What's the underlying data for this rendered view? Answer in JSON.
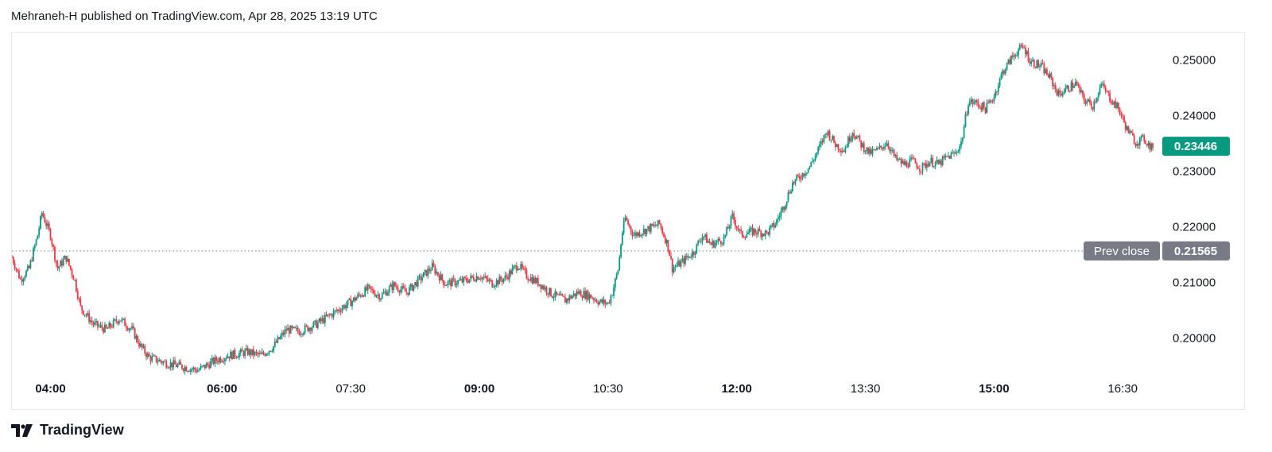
{
  "header": {
    "text": "Mehraneh-H published on TradingView.com, Apr 28, 2025 13:19 UTC"
  },
  "footer": {
    "brand": "TradingView",
    "logo_icon": "tradingview-logo-icon"
  },
  "colors": {
    "up": "#089981",
    "down": "#f23645",
    "prev_close": "#787b86",
    "axis_text": "#131722"
  },
  "chart_data": {
    "type": "candlestick",
    "title": "",
    "xlabel": "",
    "ylabel": "",
    "ylim": [
      0.1935,
      0.2549
    ],
    "grid": false,
    "x_tick_labels": [
      "04:00",
      "06:00",
      "07:30",
      "09:00",
      "10:30",
      "12:00",
      "13:30",
      "15:00",
      "16:30"
    ],
    "x_tick_bold": [
      true,
      true,
      false,
      true,
      false,
      true,
      false,
      true,
      false
    ],
    "x_tick_hours": [
      4.0,
      6.0,
      7.5,
      9.0,
      10.5,
      12.0,
      13.5,
      15.0,
      16.5
    ],
    "time_range_hours": [
      3.55,
      16.85
    ],
    "y_tick_labels": [
      "0.25000",
      "0.24000",
      "0.23000",
      "0.22000",
      "0.21000",
      "0.20000"
    ],
    "y_tick_values": [
      0.25,
      0.24,
      0.23,
      0.22,
      0.21,
      0.2
    ],
    "last_price": {
      "value": 0.23446,
      "label": "0.23446"
    },
    "prev_close": {
      "value": 0.21565,
      "label": "0.21565",
      "tag": "Prev close"
    },
    "price_path": [
      [
        3.55,
        0.2145
      ],
      [
        3.65,
        0.2105
      ],
      [
        3.75,
        0.2125
      ],
      [
        3.85,
        0.2185
      ],
      [
        3.9,
        0.2225
      ],
      [
        4.0,
        0.2185
      ],
      [
        4.08,
        0.2125
      ],
      [
        4.18,
        0.2145
      ],
      [
        4.28,
        0.2105
      ],
      [
        4.35,
        0.2055
      ],
      [
        4.5,
        0.2025
      ],
      [
        4.65,
        0.2015
      ],
      [
        4.8,
        0.2035
      ],
      [
        4.95,
        0.2015
      ],
      [
        5.05,
        0.1985
      ],
      [
        5.15,
        0.1965
      ],
      [
        5.35,
        0.1955
      ],
      [
        5.55,
        0.1948
      ],
      [
        5.72,
        0.1942
      ],
      [
        5.9,
        0.1958
      ],
      [
        6.05,
        0.1968
      ],
      [
        6.3,
        0.1975
      ],
      [
        6.45,
        0.1968
      ],
      [
        6.6,
        0.1985
      ],
      [
        6.75,
        0.2015
      ],
      [
        6.9,
        0.2012
      ],
      [
        7.1,
        0.2025
      ],
      [
        7.3,
        0.2045
      ],
      [
        7.5,
        0.2065
      ],
      [
        7.7,
        0.2088
      ],
      [
        7.85,
        0.2075
      ],
      [
        8.0,
        0.2095
      ],
      [
        8.15,
        0.2082
      ],
      [
        8.3,
        0.2105
      ],
      [
        8.45,
        0.2128
      ],
      [
        8.6,
        0.2098
      ],
      [
        8.8,
        0.2102
      ],
      [
        9.0,
        0.2112
      ],
      [
        9.15,
        0.2098
      ],
      [
        9.3,
        0.2108
      ],
      [
        9.45,
        0.2132
      ],
      [
        9.55,
        0.2112
      ],
      [
        9.7,
        0.2098
      ],
      [
        9.85,
        0.2078
      ],
      [
        10.0,
        0.2068
      ],
      [
        10.15,
        0.2082
      ],
      [
        10.3,
        0.2075
      ],
      [
        10.4,
        0.2065
      ],
      [
        10.5,
        0.2062
      ],
      [
        10.55,
        0.2082
      ],
      [
        10.62,
        0.2125
      ],
      [
        10.66,
        0.2185
      ],
      [
        10.7,
        0.2215
      ],
      [
        10.8,
        0.2185
      ],
      [
        10.95,
        0.2195
      ],
      [
        11.1,
        0.2205
      ],
      [
        11.2,
        0.2165
      ],
      [
        11.25,
        0.2125
      ],
      [
        11.35,
        0.2135
      ],
      [
        11.5,
        0.2155
      ],
      [
        11.6,
        0.2185
      ],
      [
        11.7,
        0.2168
      ],
      [
        11.85,
        0.2178
      ],
      [
        11.95,
        0.2218
      ],
      [
        12.05,
        0.2185
      ],
      [
        12.2,
        0.2192
      ],
      [
        12.35,
        0.2188
      ],
      [
        12.45,
        0.2205
      ],
      [
        12.55,
        0.2238
      ],
      [
        12.65,
        0.2278
      ],
      [
        12.75,
        0.2292
      ],
      [
        12.85,
        0.2308
      ],
      [
        12.95,
        0.2338
      ],
      [
        13.05,
        0.2372
      ],
      [
        13.15,
        0.2348
      ],
      [
        13.25,
        0.2338
      ],
      [
        13.35,
        0.2372
      ],
      [
        13.45,
        0.2348
      ],
      [
        13.55,
        0.2332
      ],
      [
        13.65,
        0.2338
      ],
      [
        13.75,
        0.2352
      ],
      [
        13.85,
        0.2322
      ],
      [
        13.95,
        0.2312
      ],
      [
        14.05,
        0.2318
      ],
      [
        14.15,
        0.2305
      ],
      [
        14.25,
        0.2318
      ],
      [
        14.35,
        0.2312
      ],
      [
        14.45,
        0.2325
      ],
      [
        14.55,
        0.2332
      ],
      [
        14.62,
        0.2352
      ],
      [
        14.7,
        0.2425
      ],
      [
        14.8,
        0.2422
      ],
      [
        14.9,
        0.2412
      ],
      [
        15.0,
        0.2435
      ],
      [
        15.1,
        0.2478
      ],
      [
        15.2,
        0.2502
      ],
      [
        15.28,
        0.2518
      ],
      [
        15.35,
        0.2522
      ],
      [
        15.42,
        0.2498
      ],
      [
        15.55,
        0.2488
      ],
      [
        15.65,
        0.2468
      ],
      [
        15.75,
        0.2438
      ],
      [
        15.85,
        0.2448
      ],
      [
        15.95,
        0.2458
      ],
      [
        16.05,
        0.2428
      ],
      [
        16.15,
        0.2418
      ],
      [
        16.25,
        0.2455
      ],
      [
        16.35,
        0.2432
      ],
      [
        16.45,
        0.2412
      ],
      [
        16.55,
        0.2375
      ],
      [
        16.65,
        0.2352
      ],
      [
        16.75,
        0.2358
      ],
      [
        16.82,
        0.23446
      ]
    ]
  }
}
